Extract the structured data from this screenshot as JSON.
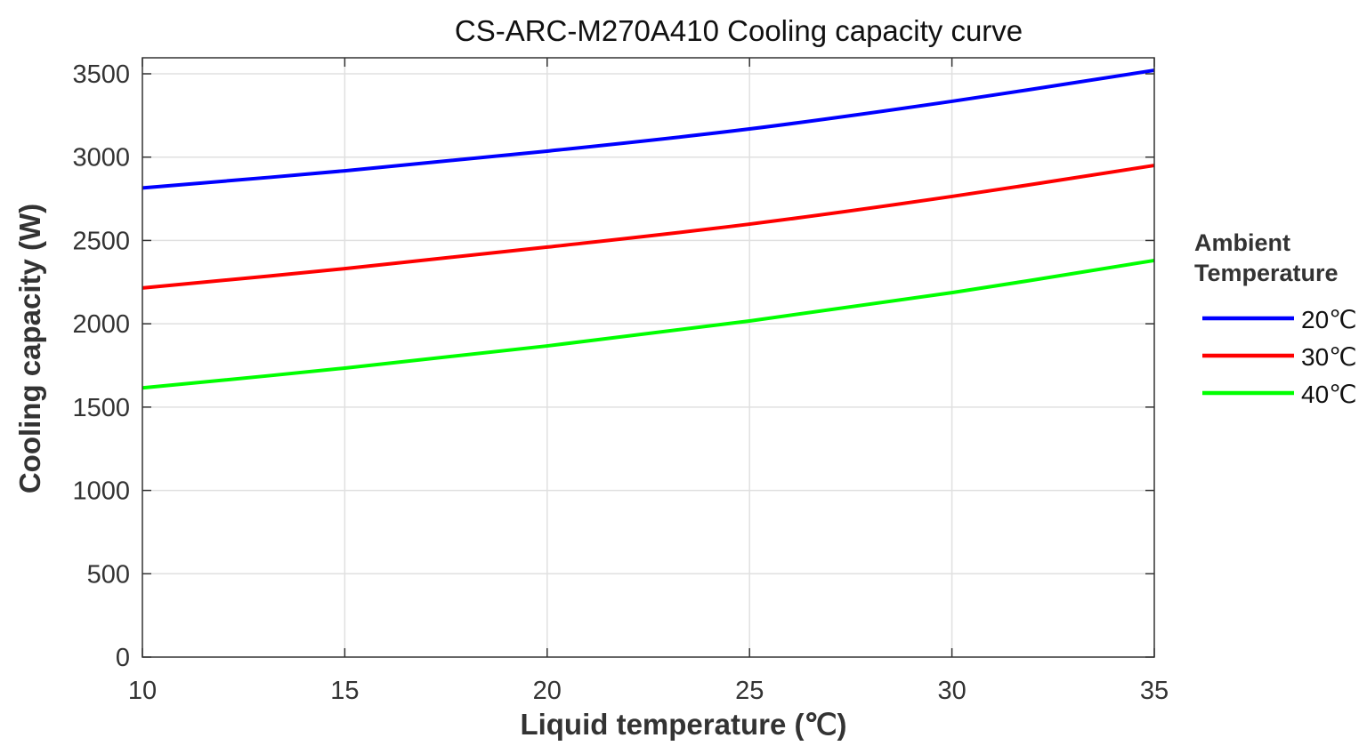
{
  "chart_data": {
    "type": "line",
    "title": "CS-ARC-M270A410 Cooling capacity curve",
    "xlabel": "Liquid temperature (℃)",
    "ylabel": "Cooling capacity (W)",
    "xlim": [
      10,
      35
    ],
    "ylim": [
      0,
      3500
    ],
    "xticks": [
      10,
      15,
      20,
      25,
      30,
      35
    ],
    "yticks": [
      0,
      500,
      1000,
      1500,
      2000,
      2500,
      3000,
      3500
    ],
    "grid": true,
    "legend": {
      "title": "Ambient Temperature",
      "placement": "right"
    },
    "x": [
      10,
      15,
      20,
      25,
      30,
      35
    ],
    "series": [
      {
        "name": "20℃",
        "color": "#0000ff",
        "values": [
          2815,
          2918,
          3036,
          3169,
          3335,
          3521
        ]
      },
      {
        "name": "30℃",
        "color": "#ff0000",
        "values": [
          2215,
          2331,
          2460,
          2598,
          2764,
          2950
        ]
      },
      {
        "name": "40℃",
        "color": "#00ff00",
        "values": [
          1615,
          1734,
          1867,
          2017,
          2187,
          2380
        ]
      }
    ]
  }
}
